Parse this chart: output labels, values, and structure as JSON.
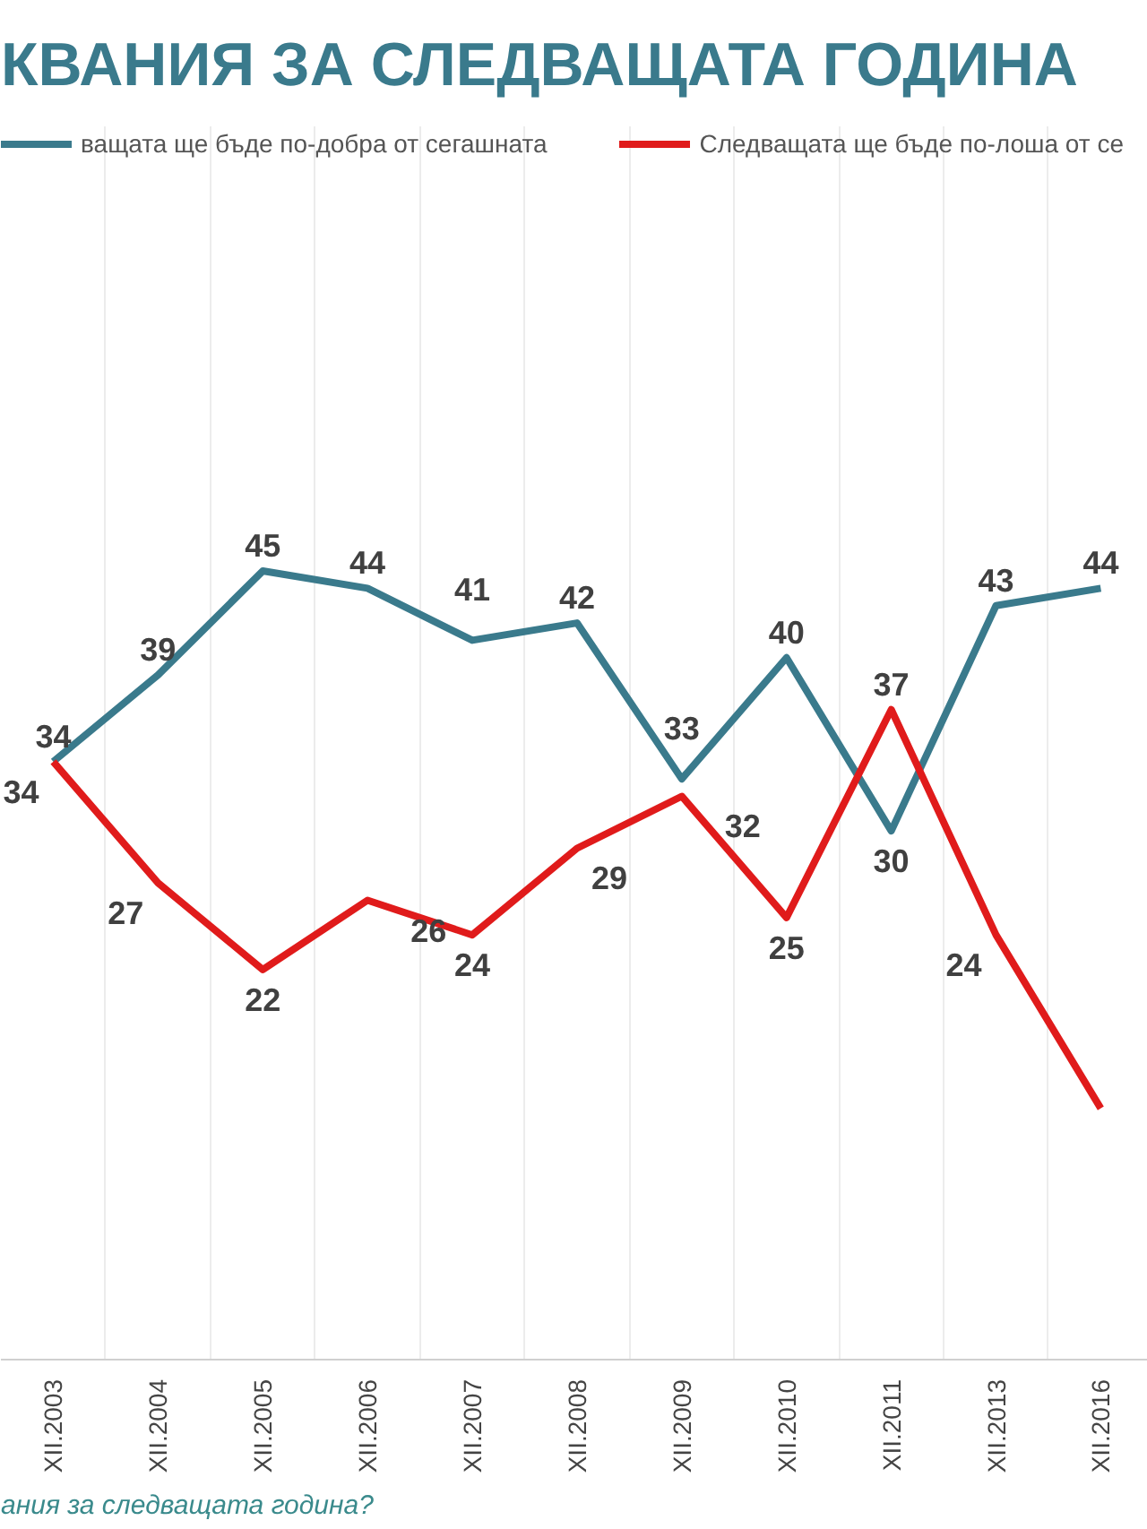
{
  "chart_data": {
    "type": "line",
    "title": "КВАНИЯ ЗА СЛЕДВАЩАТА ГОДИНА",
    "categories": [
      "XII.2003",
      "XII.2004",
      "XII.2005",
      "XII.2006",
      "XII.2007",
      "XII.2008",
      "XII.2009",
      "XII.2010",
      "XII.2011",
      "XII.2013",
      "XII.2016"
    ],
    "series": [
      {
        "name": "ващата ще бъде по-добра от сегашната",
        "color": "#3a7a8c",
        "values": [
          34,
          39,
          45,
          44,
          41,
          42,
          33,
          40,
          30,
          43,
          44
        ],
        "value_labels": [
          "34",
          "39",
          "45",
          "44",
          "41",
          "42",
          "33",
          "40",
          "30",
          "43",
          "44"
        ]
      },
      {
        "name": "Следващата ще бъде по-лоша от се",
        "color": "#e01b1b",
        "values": [
          34,
          27,
          22,
          26,
          24,
          29,
          32,
          25,
          37,
          24,
          14
        ],
        "value_labels": [
          "34",
          "27",
          "22",
          "26",
          "24",
          "29",
          "32",
          "25",
          "37",
          "24",
          null
        ]
      }
    ],
    "annotations": [
      "ания за следващата година?"
    ],
    "grid": "x",
    "legend": "top",
    "marker": "none",
    "line_style": "solid"
  }
}
